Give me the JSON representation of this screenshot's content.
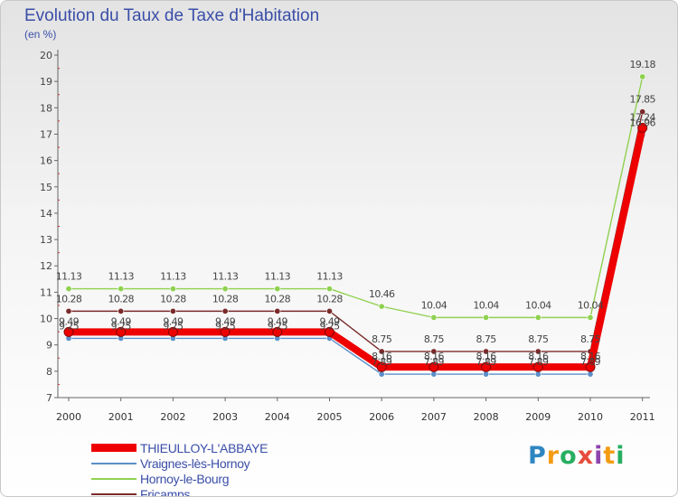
{
  "header": {
    "title": "Evolution du Taux de Taxe d'Habitation",
    "subtitle": "(en %)"
  },
  "brand": {
    "letters": [
      "P",
      "r",
      "o",
      "x",
      "i",
      "t",
      "i"
    ],
    "colors": [
      "#2e86c1",
      "#f39c12",
      "#27ae60",
      "#e74c3c",
      "#8e44ad",
      "#f39c12",
      "#27ae60"
    ]
  },
  "chart_data": {
    "type": "line",
    "title": "Evolution du Taux de Taxe d'Habitation",
    "ylabel": "(en %)",
    "xlabel": "",
    "x": [
      "2000",
      "2001",
      "2002",
      "2003",
      "2004",
      "2005",
      "2006",
      "2007",
      "2008",
      "2009",
      "2010",
      "2011"
    ],
    "ylim": [
      7,
      20
    ],
    "yticks": [
      7,
      8,
      9,
      10,
      11,
      12,
      13,
      14,
      15,
      16,
      17,
      18,
      19,
      20
    ],
    "grid": false,
    "legend_position": "bottom-left",
    "series": [
      {
        "name": "THIEULLOY-L'ABBAYE",
        "color": "#ee0000",
        "values": [
          9.49,
          9.49,
          9.49,
          9.49,
          9.49,
          9.49,
          8.16,
          8.16,
          8.16,
          8.16,
          8.16,
          17.24
        ],
        "labels": [
          "9.49",
          "9.49",
          "9.49",
          "9.49",
          "9.49",
          "9.49",
          "8.16",
          "8.16",
          "8.16",
          "8.16",
          "8.16",
          "17.24"
        ]
      },
      {
        "name": "Vraignes-lès-Hornoy",
        "color": "#5b8fc9",
        "values": [
          9.25,
          9.25,
          9.25,
          9.25,
          9.25,
          9.25,
          7.89,
          7.89,
          7.89,
          7.89,
          7.89,
          16.96
        ],
        "labels": [
          "9.25",
          "9.25",
          "9.25",
          "9.25",
          "9.25",
          "9.25",
          "7.89",
          "7.89",
          "7.89",
          "7.89",
          "7.89",
          "16.96"
        ]
      },
      {
        "name": "Hornoy-le-Bourg",
        "color": "#8fd14f",
        "values": [
          11.13,
          11.13,
          11.13,
          11.13,
          11.13,
          11.13,
          10.46,
          10.04,
          10.04,
          10.04,
          10.04,
          19.18
        ],
        "labels": [
          "11.13",
          "11.13",
          "11.13",
          "11.13",
          "11.13",
          "11.13",
          "10.46",
          "10.04",
          "10.04",
          "10.04",
          "10.04",
          "19.18"
        ]
      },
      {
        "name": "Fricamps",
        "color": "#7a2a2a",
        "values": [
          10.28,
          10.28,
          10.28,
          10.28,
          10.28,
          10.28,
          8.75,
          8.75,
          8.75,
          8.75,
          8.75,
          17.85
        ],
        "labels": [
          "10.28",
          "10.28",
          "10.28",
          "10.28",
          "10.28",
          "10.28",
          "8.75",
          "8.75",
          "8.75",
          "8.75",
          "8.75",
          "17.85"
        ]
      }
    ]
  }
}
